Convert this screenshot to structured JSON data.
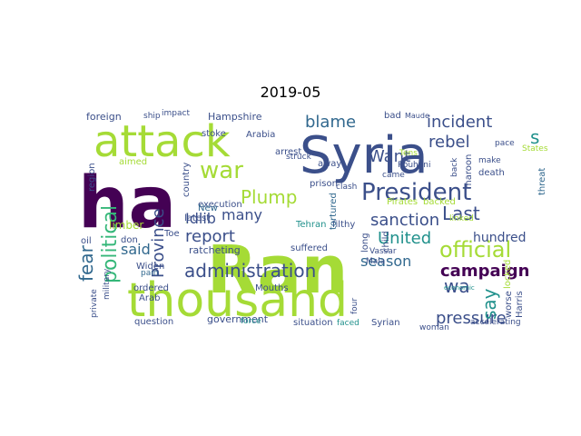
{
  "figure": {
    "title": "2019-05",
    "image_type": "word-cloud"
  },
  "palette": {
    "dark_purple": "#440154",
    "indigo": "#3b4f8a",
    "blue": "#31688e",
    "teal": "#21918c",
    "green": "#35b779",
    "lime": "#a5db36",
    "yellow_green": "#c8e020"
  },
  "words": [
    {
      "text": "Ran",
      "color": "lime"
    },
    {
      "text": "thousand",
      "color": "lime"
    },
    {
      "text": "ha",
      "color": "dark_purple"
    },
    {
      "text": "attack",
      "color": "lime"
    },
    {
      "text": "Syria",
      "color": "indigo"
    },
    {
      "text": "President",
      "color": "indigo"
    },
    {
      "text": "administration",
      "color": "indigo"
    },
    {
      "text": "political",
      "color": "green"
    },
    {
      "text": "war",
      "color": "lime"
    },
    {
      "text": "official",
      "color": "lime"
    },
    {
      "text": "incident",
      "color": "indigo"
    },
    {
      "text": "campaign",
      "color": "dark_purple"
    },
    {
      "text": "blame",
      "color": "blue"
    },
    {
      "text": "sanction",
      "color": "indigo"
    },
    {
      "text": "United",
      "color": "teal"
    },
    {
      "text": "pressure",
      "color": "indigo"
    },
    {
      "text": "Plump",
      "color": "lime"
    },
    {
      "text": "report",
      "color": "indigo"
    },
    {
      "text": "Province",
      "color": "indigo"
    },
    {
      "text": "Last",
      "color": "indigo"
    },
    {
      "text": "rebel",
      "color": "indigo"
    },
    {
      "text": "Want",
      "color": "indigo"
    },
    {
      "text": "fear",
      "color": "blue"
    },
    {
      "text": "say",
      "color": "teal"
    },
    {
      "text": "season",
      "color": "blue"
    },
    {
      "text": "Idlib",
      "color": "indigo"
    },
    {
      "text": "wa",
      "color": "indigo"
    },
    {
      "text": "said",
      "color": "blue"
    },
    {
      "text": "many",
      "color": "indigo"
    },
    {
      "text": "s",
      "color": "teal"
    },
    {
      "text": "hundred",
      "color": "indigo"
    },
    {
      "text": "government",
      "color": "indigo"
    },
    {
      "text": "question",
      "color": "indigo"
    },
    {
      "text": "ratcheting",
      "color": "indigo"
    },
    {
      "text": "limber",
      "color": "lime"
    },
    {
      "text": "Hampshire",
      "color": "indigo"
    },
    {
      "text": "foreign",
      "color": "indigo"
    },
    {
      "text": "Tehran",
      "color": "teal"
    },
    {
      "text": "prison",
      "color": "indigo"
    },
    {
      "text": "filthy",
      "color": "indigo"
    },
    {
      "text": "suffered",
      "color": "indigo"
    },
    {
      "text": "situation",
      "color": "indigo"
    },
    {
      "text": "faced",
      "color": "teal"
    },
    {
      "text": "Syrian",
      "color": "indigo"
    },
    {
      "text": "tortured",
      "color": "blue"
    },
    {
      "text": "execution",
      "color": "indigo"
    },
    {
      "text": "arrest",
      "color": "indigo"
    },
    {
      "text": "away",
      "color": "indigo"
    },
    {
      "text": "stoke",
      "color": "indigo"
    },
    {
      "text": "aimed",
      "color": "lime"
    },
    {
      "text": "Widen",
      "color": "indigo"
    },
    {
      "text": "ordered",
      "color": "indigo"
    },
    {
      "text": "Toe",
      "color": "indigo"
    },
    {
      "text": "don",
      "color": "indigo"
    },
    {
      "text": "latest",
      "color": "indigo"
    },
    {
      "text": "New",
      "color": "blue"
    },
    {
      "text": "Arab",
      "color": "indigo"
    },
    {
      "text": "pain",
      "color": "blue"
    },
    {
      "text": "Mouths",
      "color": "indigo"
    },
    {
      "text": "force",
      "color": "teal"
    },
    {
      "text": "Harris",
      "color": "indigo"
    },
    {
      "text": "worse",
      "color": "indigo"
    },
    {
      "text": "accelerating",
      "color": "indigo"
    },
    {
      "text": "threat",
      "color": "blue"
    },
    {
      "text": "death",
      "color": "indigo"
    },
    {
      "text": "make",
      "color": "indigo"
    },
    {
      "text": "pace",
      "color": "indigo"
    },
    {
      "text": "Tens",
      "color": "lime"
    },
    {
      "text": "Rouhani",
      "color": "indigo"
    },
    {
      "text": "maroon",
      "color": "indigo"
    },
    {
      "text": "bad",
      "color": "indigo"
    },
    {
      "text": "Maude",
      "color": "indigo"
    },
    {
      "text": "Arabia",
      "color": "indigo"
    },
    {
      "text": "impact",
      "color": "indigo"
    },
    {
      "text": "ship",
      "color": "indigo"
    },
    {
      "text": "struck",
      "color": "indigo"
    },
    {
      "text": "Vassar",
      "color": "indigo"
    },
    {
      "text": "Mala",
      "color": "indigo"
    },
    {
      "text": "child",
      "color": "indigo"
    },
    {
      "text": "long",
      "color": "indigo"
    },
    {
      "text": "locked",
      "color": "lime"
    },
    {
      "text": "four",
      "color": "indigo"
    },
    {
      "text": "woman",
      "color": "indigo"
    },
    {
      "text": "back",
      "color": "indigo"
    },
    {
      "text": "came",
      "color": "indigo"
    },
    {
      "text": "clash",
      "color": "indigo"
    },
    {
      "text": "country",
      "color": "indigo"
    },
    {
      "text": "region",
      "color": "indigo"
    },
    {
      "text": "military",
      "color": "indigo"
    },
    {
      "text": "private",
      "color": "indigo"
    },
    {
      "text": "oil",
      "color": "indigo"
    },
    {
      "text": "economic",
      "color": "teal"
    },
    {
      "text": "Pirates",
      "color": "lime"
    },
    {
      "text": "backed",
      "color": "lime"
    },
    {
      "text": "States",
      "color": "lime"
    },
    {
      "text": "linked",
      "color": "lime"
    },
    {
      "text": "Idlib",
      "color": "lime"
    }
  ]
}
